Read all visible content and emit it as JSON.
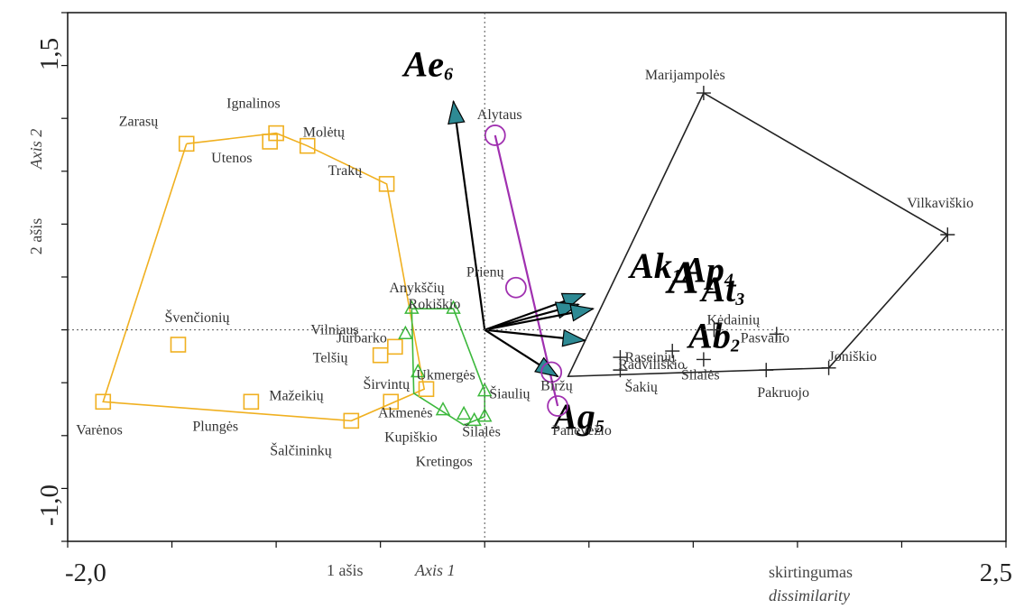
{
  "chart_data": {
    "type": "scatter",
    "xlim": [
      -2.0,
      2.5
    ],
    "ylim": [
      -1.0,
      1.5
    ],
    "x_tick_labels": [
      "-2,0",
      "2,5"
    ],
    "y_tick_labels": [
      "1,5",
      "-1,0"
    ],
    "xlabel_lt": "1 ašis",
    "xlabel_en": "Axis 1",
    "ylabel_lt": "2 ašis",
    "ylabel_en": "Axis 2",
    "scale_label_lt": "skirtingumas",
    "scale_label_en": "dissimilarity",
    "group_label": "A",
    "colors": {
      "yellow": "#f0b020",
      "green": "#3cb83c",
      "purple": "#a030b0",
      "black": "#222222",
      "arrow_fill": "#2e8a94"
    },
    "groups": [
      {
        "color": "#f0b020",
        "marker": "square",
        "points": [
          {
            "label": "Zarasų",
            "x": -1.43,
            "y": 0.88
          },
          {
            "label": "Ignalinos",
            "x": -1.0,
            "y": 0.93
          },
          {
            "label": "Utenos",
            "x": -1.03,
            "y": 0.89
          },
          {
            "label": "Molėtų",
            "x": -0.85,
            "y": 0.87
          },
          {
            "label": "Trakų",
            "x": -0.47,
            "y": 0.69
          },
          {
            "label": "Švenčionių",
            "x": -1.47,
            "y": -0.07
          },
          {
            "label": "Jurbarko",
            "x": -0.43,
            "y": -0.08
          },
          {
            "label": "Telšių",
            "x": -0.5,
            "y": -0.12
          },
          {
            "label": "Varėnos",
            "x": -1.83,
            "y": -0.34
          },
          {
            "label": "Plungės",
            "x": -1.12,
            "y": -0.34
          },
          {
            "label": "Mažeikių",
            "x": -0.45,
            "y": -0.34
          },
          {
            "label": "Šalčininkų",
            "x": -0.64,
            "y": -0.43
          },
          {
            "label": "Širvintų",
            "x": -0.28,
            "y": -0.28
          }
        ],
        "hull": [
          [
            -1.43,
            0.88
          ],
          [
            -1.0,
            0.93
          ],
          [
            -0.85,
            0.87
          ],
          [
            -0.47,
            0.69
          ],
          [
            -0.29,
            -0.28
          ],
          [
            -0.64,
            -0.43
          ],
          [
            -1.83,
            -0.34
          ],
          [
            -1.43,
            0.88
          ]
        ]
      },
      {
        "color": "#3cb83c",
        "marker": "triangle",
        "points": [
          {
            "label": "Anykščių",
            "x": -0.35,
            "y": 0.1
          },
          {
            "label": "Rokiškio",
            "x": -0.15,
            "y": 0.1
          },
          {
            "label": "Vilniaus",
            "x": -0.38,
            "y": -0.02
          },
          {
            "label": "Ukmergės",
            "x": -0.32,
            "y": -0.2
          },
          {
            "label": "Šiaulių",
            "x": 0.0,
            "y": -0.29
          },
          {
            "label": "Akmenės",
            "x": -0.2,
            "y": -0.38
          },
          {
            "label": "Kupiškio",
            "x": -0.1,
            "y": -0.4
          },
          {
            "label": "Šilalės",
            "x": 0.0,
            "y": -0.41
          },
          {
            "label": "Kretingos",
            "x": -0.05,
            "y": -0.43
          }
        ],
        "hull": [
          [
            -0.35,
            0.1
          ],
          [
            -0.15,
            0.1
          ],
          [
            0.0,
            -0.29
          ],
          [
            0.0,
            -0.41
          ],
          [
            -0.1,
            -0.45
          ],
          [
            -0.34,
            -0.3
          ],
          [
            -0.35,
            0.1
          ]
        ]
      },
      {
        "color": "#a030b0",
        "marker": "circle",
        "points": [
          {
            "label": "Alytaus",
            "x": 0.05,
            "y": 0.92
          },
          {
            "label": "Prienų",
            "x": 0.15,
            "y": 0.2
          },
          {
            "label": "Biržų",
            "x": 0.32,
            "y": -0.2
          },
          {
            "label": "Panevėžio",
            "x": 0.35,
            "y": -0.36
          }
        ],
        "hull": [
          [
            0.05,
            0.92
          ],
          [
            0.35,
            -0.36
          ]
        ]
      },
      {
        "color": "#222222",
        "marker": "plus",
        "points": [
          {
            "label": "Marijampolės",
            "x": 1.05,
            "y": 1.12
          },
          {
            "label": "Vilkaviškio",
            "x": 2.22,
            "y": 0.45
          },
          {
            "label": "Kėdainių",
            "x": 1.1,
            "y": 0.0
          },
          {
            "label": "Pasvalio",
            "x": 1.4,
            "y": -0.02
          },
          {
            "label": "Radviliškio",
            "x": 0.9,
            "y": -0.1
          },
          {
            "label": "Raseinių",
            "x": 0.65,
            "y": -0.13
          },
          {
            "label": "Šakių",
            "x": 0.65,
            "y": -0.19
          },
          {
            "label": "Šilalės",
            "x": 1.05,
            "y": -0.14
          },
          {
            "label": "Pakruojo",
            "x": 1.35,
            "y": -0.19
          },
          {
            "label": "Joniškio",
            "x": 1.65,
            "y": -0.18
          }
        ],
        "hull": [
          [
            1.05,
            1.12
          ],
          [
            2.22,
            0.45
          ],
          [
            1.65,
            -0.18
          ],
          [
            0.4,
            -0.22
          ],
          [
            1.05,
            1.12
          ]
        ]
      }
    ],
    "vectors": [
      {
        "name": "Ae",
        "sub": "6",
        "x": -0.15,
        "y": 1.08
      },
      {
        "name": "Ak",
        "sub": "1",
        "x": 0.48,
        "y": 0.17
      },
      {
        "name": "Ap",
        "sub": "4",
        "x": 0.45,
        "y": 0.12
      },
      {
        "name": "At",
        "sub": "3",
        "x": 0.52,
        "y": 0.1
      },
      {
        "name": "Ab",
        "sub": "2",
        "x": 0.48,
        "y": -0.05
      },
      {
        "name": "Ag",
        "sub": "5",
        "x": 0.35,
        "y": -0.22
      }
    ]
  }
}
